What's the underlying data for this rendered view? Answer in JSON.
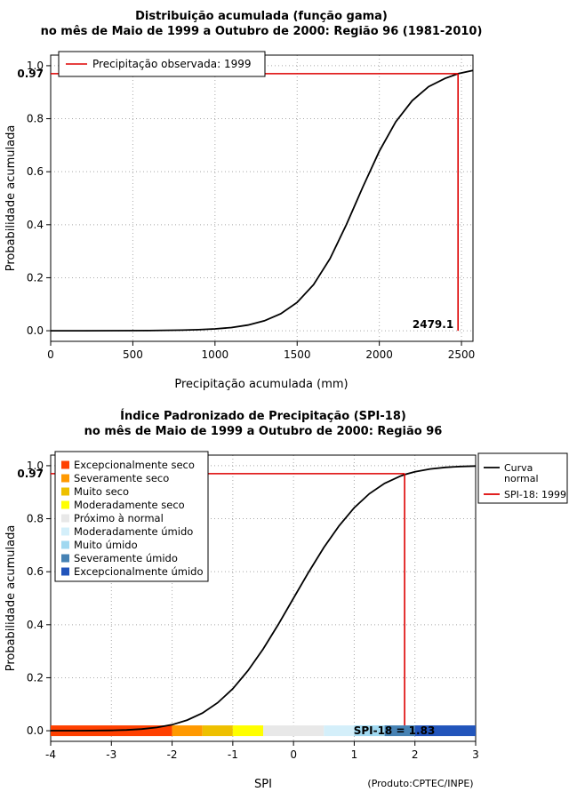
{
  "figure": {
    "background": "#FFFFFF",
    "accent_red": "#DD0000"
  },
  "chart_data": [
    {
      "type": "line",
      "title": "Distribuição acumulada (função gama)",
      "subtitle": "no mês de Maio de 1999 a Outubro de 2000: Região 96 (1981-2010)",
      "xlabel": "Precipitação acumulada (mm)",
      "ylabel": "Probabilidade acumulada",
      "xlim": [
        0,
        2570
      ],
      "ylim": [
        0,
        1
      ],
      "xticks": [
        0,
        500,
        1000,
        1500,
        2000,
        2500
      ],
      "yticks": [
        0.0,
        0.2,
        0.4,
        0.6,
        0.8,
        1.0
      ],
      "grid": true,
      "legend": {
        "position": "top-left",
        "items": [
          {
            "label": "Precipitação observada: 1999",
            "color": "#DD0000",
            "type": "line"
          }
        ]
      },
      "series": [
        {
          "name": "Distribuição acumulada (função gama)",
          "color": "#000000",
          "points": [
            [
              0,
              0
            ],
            [
              200,
              0
            ],
            [
              400,
              0.0002
            ],
            [
              600,
              0.0007
            ],
            [
              800,
              0.0022
            ],
            [
              900,
              0.004
            ],
            [
              1000,
              0.007
            ],
            [
              1100,
              0.012
            ],
            [
              1200,
              0.0215
            ],
            [
              1300,
              0.0374
            ],
            [
              1400,
              0.064
            ],
            [
              1500,
              0.107
            ],
            [
              1600,
              0.174
            ],
            [
              1700,
              0.272
            ],
            [
              1800,
              0.401
            ],
            [
              1870,
              0.5
            ],
            [
              1900,
              0.543
            ],
            [
              2000,
              0.677
            ],
            [
              2100,
              0.788
            ],
            [
              2200,
              0.868
            ],
            [
              2300,
              0.921
            ],
            [
              2400,
              0.952
            ],
            [
              2479.1,
              0.97
            ],
            [
              2570,
              0.982
            ]
          ]
        }
      ],
      "indicator": {
        "color": "#DD0000",
        "x": 2479.1,
        "y": 0.97,
        "x_label": "2479.1",
        "x_label_color": "#000000",
        "y_label": "0.97",
        "y_label_color": "#555555"
      }
    },
    {
      "type": "line",
      "title": "Índice Padronizado de Precipitação (SPI-18)",
      "subtitle": "no mês de Maio de 1999 a Outubro de 2000: Região 96",
      "xlabel": "SPI",
      "ylabel": "Probabilidade acumulada",
      "source_note": "(Produto:CPTEC/INPE)",
      "xlim": [
        -4,
        3
      ],
      "ylim": [
        0,
        1
      ],
      "xticks": [
        -4,
        -3,
        -2,
        -1,
        0,
        1,
        2,
        3
      ],
      "yticks": [
        0.0,
        0.2,
        0.4,
        0.6,
        0.8,
        1.0
      ],
      "grid": true,
      "legend": {
        "position": "top-right",
        "items": [
          {
            "label_lines": [
              "Curva",
              "normal"
            ],
            "color": "#000000",
            "type": "line"
          },
          {
            "label_lines": [
              "SPI-18: 1999"
            ],
            "color": "#DD0000",
            "type": "line"
          }
        ]
      },
      "categories": [
        {
          "label": "Excepcionalmente seco",
          "color": "#FF4000",
          "range": [
            -4,
            -2
          ]
        },
        {
          "label": "Severamente seco",
          "color": "#FF9900",
          "range": [
            -2,
            -1.5
          ]
        },
        {
          "label": "Muito seco",
          "color": "#EEC000",
          "range": [
            -1.5,
            -1
          ]
        },
        {
          "label": "Moderadamente seco",
          "color": "#FFFF00",
          "range": [
            -1,
            -0.5
          ]
        },
        {
          "label": "Próximo à normal",
          "color": "#E8E8E8",
          "range": [
            -0.5,
            0.5
          ]
        },
        {
          "label": "Moderadamente úmido",
          "color": "#D4EFFA",
          "range": [
            0.5,
            1
          ]
        },
        {
          "label": "Muito úmido",
          "color": "#A0D8F0",
          "range": [
            1,
            1.5
          ]
        },
        {
          "label": "Severamente úmido",
          "color": "#4682B4",
          "range": [
            1.5,
            2
          ]
        },
        {
          "label": "Excepcionalmente úmido",
          "color": "#2255BB",
          "range": [
            2,
            3
          ]
        }
      ],
      "series": [
        {
          "name": "Curva normal",
          "color": "#000000",
          "points": [
            [
              -4,
              0.0001
            ],
            [
              -3.5,
              0.0002
            ],
            [
              -3,
              0.0013
            ],
            [
              -2.75,
              0.003
            ],
            [
              -2.5,
              0.0062
            ],
            [
              -2.25,
              0.0122
            ],
            [
              -2,
              0.0228
            ],
            [
              -1.75,
              0.0401
            ],
            [
              -1.5,
              0.0668
            ],
            [
              -1.25,
              0.1056
            ],
            [
              -1,
              0.1587
            ],
            [
              -0.75,
              0.2266
            ],
            [
              -0.5,
              0.3085
            ],
            [
              -0.25,
              0.4013
            ],
            [
              0,
              0.5
            ],
            [
              0.25,
              0.5987
            ],
            [
              0.5,
              0.6915
            ],
            [
              0.75,
              0.7734
            ],
            [
              1,
              0.8413
            ],
            [
              1.25,
              0.8944
            ],
            [
              1.5,
              0.9332
            ],
            [
              1.75,
              0.9599
            ],
            [
              1.83,
              0.9664
            ],
            [
              2,
              0.9772
            ],
            [
              2.25,
              0.9878
            ],
            [
              2.5,
              0.9938
            ],
            [
              2.75,
              0.997
            ],
            [
              3,
              0.9987
            ]
          ]
        }
      ],
      "indicator": {
        "color": "#DD0000",
        "x": 1.83,
        "y": 0.97,
        "x_label": "SPI-18 = 1.83",
        "x_label_color": "#00008B",
        "y_label": "0.97",
        "y_label_color": "#555555"
      }
    }
  ]
}
